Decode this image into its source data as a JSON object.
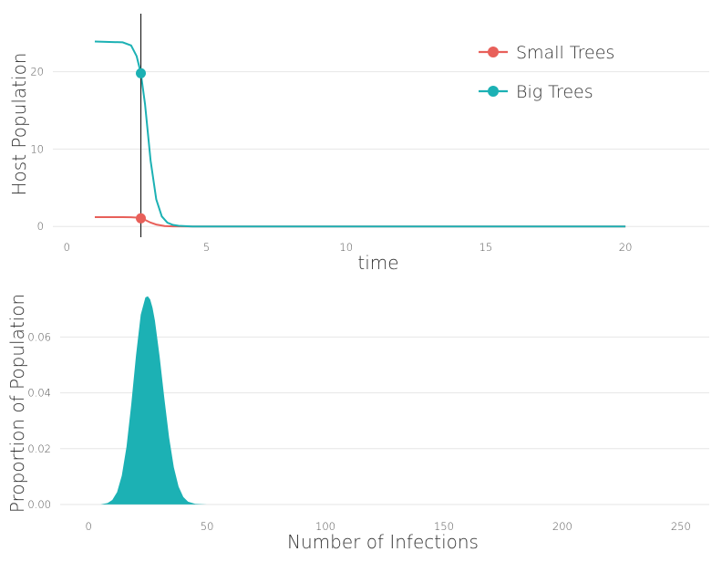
{
  "chart_data": [
    {
      "type": "line",
      "xlabel": "time",
      "ylabel": "Host Population",
      "xlim": [
        -0.5,
        23
      ],
      "ylim": [
        -0.8,
        27.5
      ],
      "x_ticks": [
        "0",
        "5",
        "10",
        "15",
        "20"
      ],
      "x_tick_values": [
        0,
        5,
        10,
        15,
        20
      ],
      "y_ticks": [
        "0",
        "10",
        "20"
      ],
      "y_tick_values": [
        0,
        10,
        20
      ],
      "grid": "horizontal",
      "legend_position": "top-right",
      "vertical_line_x": 2.65,
      "series": [
        {
          "name": "Small Trees",
          "color": "#e8605a",
          "x": [
            1.0,
            2.0,
            2.3,
            2.5,
            2.65,
            2.8,
            3.0,
            3.2,
            3.5,
            3.8,
            4.5,
            6,
            10,
            15,
            20
          ],
          "y": [
            1.2,
            1.2,
            1.19,
            1.15,
            1.05,
            0.85,
            0.5,
            0.25,
            0.06,
            0.01,
            0,
            0,
            0,
            0,
            0
          ],
          "marker": {
            "x": 2.65,
            "y": 1.05
          }
        },
        {
          "name": "Big Trees",
          "color": "#1cb1b4",
          "x": [
            1.0,
            2.0,
            2.3,
            2.5,
            2.65,
            2.8,
            3.0,
            3.2,
            3.4,
            3.6,
            3.8,
            4.0,
            4.5,
            6,
            10,
            15,
            20
          ],
          "y": [
            23.9,
            23.8,
            23.4,
            22.0,
            19.8,
            15.8,
            8.5,
            3.5,
            1.3,
            0.5,
            0.2,
            0.08,
            0,
            0,
            0,
            0,
            0
          ],
          "marker": {
            "x": 2.65,
            "y": 19.8
          }
        }
      ]
    },
    {
      "type": "area",
      "xlabel": "Number of Infections",
      "ylabel": "Proportion of Population",
      "xlim": [
        -12,
        262
      ],
      "ylim": [
        -0.001,
        0.0755
      ],
      "x_ticks": [
        "0",
        "50",
        "100",
        "150",
        "200",
        "250"
      ],
      "x_tick_values": [
        0,
        50,
        100,
        150,
        200,
        250
      ],
      "y_ticks": [
        "0.00",
        "0.02",
        "0.04",
        "0.06"
      ],
      "y_tick_values": [
        0,
        0.02,
        0.04,
        0.06
      ],
      "grid": "horizontal",
      "fill_color": "#1cb1b4",
      "x": [
        5,
        8,
        10,
        12,
        14,
        16,
        18,
        20,
        22,
        24,
        25,
        26,
        27,
        28,
        30,
        32,
        34,
        36,
        38,
        40,
        42,
        45,
        50
      ],
      "y": [
        0.0,
        0.0005,
        0.0016,
        0.0044,
        0.0103,
        0.0207,
        0.0359,
        0.0534,
        0.068,
        0.0742,
        0.0746,
        0.0735,
        0.0705,
        0.066,
        0.053,
        0.038,
        0.024,
        0.0133,
        0.0064,
        0.0027,
        0.001,
        0.0002,
        0.0
      ]
    }
  ]
}
